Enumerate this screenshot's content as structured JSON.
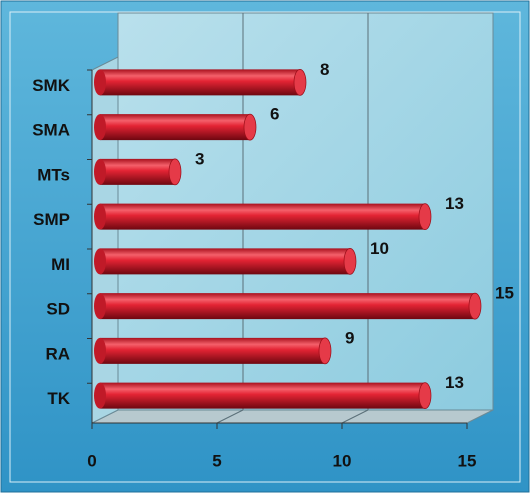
{
  "chart_data": {
    "type": "bar",
    "orientation": "horizontal",
    "categories": [
      "SMK",
      "SMA",
      "MTs",
      "SMP",
      "MI",
      "SD",
      "RA",
      "TK"
    ],
    "values": [
      8,
      6,
      3,
      13,
      10,
      15,
      9,
      13
    ],
    "color": "#e0202f",
    "xlim": [
      0,
      15
    ],
    "xticks": [
      0,
      5,
      10,
      15
    ],
    "grid": true
  }
}
